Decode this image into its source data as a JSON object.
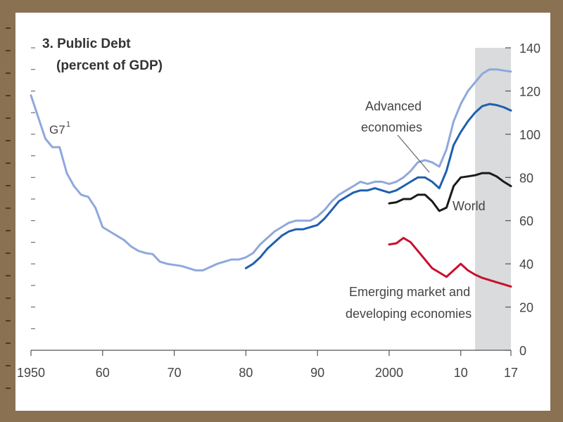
{
  "chart_data": {
    "type": "line",
    "title": "3. Public Debt",
    "subtitle": "(percent of GDP)",
    "xlabel": "",
    "ylabel": "",
    "xlim": [
      1950,
      2017
    ],
    "ylim": [
      0,
      140
    ],
    "x_tick_labels": [
      {
        "x": 1950,
        "label": "1950"
      },
      {
        "x": 1960,
        "label": "60"
      },
      {
        "x": 1970,
        "label": "70"
      },
      {
        "x": 1980,
        "label": "80"
      },
      {
        "x": 1990,
        "label": "90"
      },
      {
        "x": 2000,
        "label": "2000"
      },
      {
        "x": 2010,
        "label": "10"
      },
      {
        "x": 2017,
        "label": "17"
      }
    ],
    "y_ticks": [
      0,
      20,
      40,
      60,
      80,
      100,
      120,
      140
    ],
    "y_axis_side": "right",
    "grid": false,
    "projection_shading": {
      "from": 2012,
      "to": 2017,
      "color": "#d9dbdd"
    },
    "series": [
      {
        "name": "G7¹",
        "color": "#8fa8dc",
        "points": [
          [
            1950,
            118
          ],
          [
            1951,
            108
          ],
          [
            1952,
            98
          ],
          [
            1953,
            94
          ],
          [
            1954,
            94
          ],
          [
            1955,
            82
          ],
          [
            1956,
            76
          ],
          [
            1957,
            72
          ],
          [
            1958,
            71
          ],
          [
            1959,
            66
          ],
          [
            1960,
            57
          ],
          [
            1961,
            55
          ],
          [
            1962,
            53
          ],
          [
            1963,
            51
          ],
          [
            1964,
            48
          ],
          [
            1965,
            46
          ],
          [
            1966,
            45
          ],
          [
            1967,
            44.5
          ],
          [
            1968,
            41
          ],
          [
            1969,
            40
          ],
          [
            1970,
            39.5
          ],
          [
            1971,
            39
          ],
          [
            1972,
            38
          ],
          [
            1973,
            37
          ],
          [
            1974,
            37
          ],
          [
            1975,
            38.5
          ],
          [
            1976,
            40
          ],
          [
            1977,
            41
          ],
          [
            1978,
            42
          ],
          [
            1979,
            42
          ],
          [
            1980,
            43
          ],
          [
            1981,
            45
          ],
          [
            1982,
            49
          ],
          [
            1983,
            52
          ],
          [
            1984,
            55
          ],
          [
            1985,
            57
          ],
          [
            1986,
            59
          ],
          [
            1987,
            60
          ],
          [
            1988,
            60
          ],
          [
            1989,
            60
          ],
          [
            1990,
            62
          ],
          [
            1991,
            65
          ],
          [
            1992,
            69
          ],
          [
            1993,
            72
          ],
          [
            1994,
            74
          ],
          [
            1995,
            76
          ],
          [
            1996,
            78
          ],
          [
            1997,
            77
          ],
          [
            1998,
            78
          ],
          [
            1999,
            78
          ],
          [
            2000,
            77
          ],
          [
            2001,
            78
          ],
          [
            2002,
            80
          ],
          [
            2003,
            83
          ],
          [
            2004,
            87
          ],
          [
            2005,
            88
          ],
          [
            2006,
            87
          ],
          [
            2007,
            85
          ],
          [
            2008,
            93
          ],
          [
            2009,
            106
          ],
          [
            2010,
            114
          ],
          [
            2011,
            120
          ],
          [
            2012,
            124
          ],
          [
            2013,
            128
          ],
          [
            2014,
            130
          ],
          [
            2015,
            130
          ],
          [
            2016,
            129.5
          ],
          [
            2017,
            129
          ]
        ]
      },
      {
        "name": "Advanced economies",
        "color": "#1f5fae",
        "points": [
          [
            1980,
            38
          ],
          [
            1981,
            40
          ],
          [
            1982,
            43
          ],
          [
            1983,
            47
          ],
          [
            1984,
            50
          ],
          [
            1985,
            53
          ],
          [
            1986,
            55
          ],
          [
            1987,
            56
          ],
          [
            1988,
            56
          ],
          [
            1989,
            57
          ],
          [
            1990,
            58
          ],
          [
            1991,
            61
          ],
          [
            1992,
            65
          ],
          [
            1993,
            69
          ],
          [
            1994,
            71
          ],
          [
            1995,
            73
          ],
          [
            1996,
            74
          ],
          [
            1997,
            74
          ],
          [
            1998,
            75
          ],
          [
            1999,
            74
          ],
          [
            2000,
            73
          ],
          [
            2001,
            74
          ],
          [
            2002,
            76
          ],
          [
            2003,
            78
          ],
          [
            2004,
            80
          ],
          [
            2005,
            80
          ],
          [
            2006,
            78
          ],
          [
            2007,
            75
          ],
          [
            2008,
            83
          ],
          [
            2009,
            95
          ],
          [
            2010,
            101
          ],
          [
            2011,
            106
          ],
          [
            2012,
            110
          ],
          [
            2013,
            113
          ],
          [
            2014,
            114
          ],
          [
            2015,
            113.5
          ],
          [
            2016,
            112.5
          ],
          [
            2017,
            111
          ]
        ]
      },
      {
        "name": "World",
        "color": "#1a1a1a",
        "points": [
          [
            2000,
            68
          ],
          [
            2001,
            68.5
          ],
          [
            2002,
            70
          ],
          [
            2003,
            70
          ],
          [
            2004,
            72
          ],
          [
            2005,
            72
          ],
          [
            2006,
            69
          ],
          [
            2007,
            64.5
          ],
          [
            2008,
            66
          ],
          [
            2009,
            76
          ],
          [
            2010,
            80
          ],
          [
            2011,
            80.5
          ],
          [
            2012,
            81
          ],
          [
            2013,
            82
          ],
          [
            2014,
            82
          ],
          [
            2015,
            80.5
          ],
          [
            2016,
            78
          ],
          [
            2017,
            76
          ]
        ]
      },
      {
        "name": "Emerging market and developing economies",
        "color": "#c8102e",
        "points": [
          [
            2000,
            49
          ],
          [
            2001,
            49.5
          ],
          [
            2002,
            52
          ],
          [
            2003,
            50
          ],
          [
            2004,
            46
          ],
          [
            2005,
            42
          ],
          [
            2006,
            38
          ],
          [
            2007,
            36
          ],
          [
            2008,
            34
          ],
          [
            2009,
            37
          ],
          [
            2010,
            40
          ],
          [
            2011,
            37
          ],
          [
            2012,
            35
          ],
          [
            2013,
            33.5
          ],
          [
            2014,
            32.5
          ],
          [
            2015,
            31.5
          ],
          [
            2016,
            30.5
          ],
          [
            2017,
            29.5
          ]
        ]
      }
    ],
    "annotations": {
      "g7": "G7",
      "g7_sup": "1",
      "advanced_line1": "Advanced",
      "advanced_line2": "economies",
      "world": "World",
      "emerging_line1": "Emerging market and",
      "emerging_line2": "developing economies"
    }
  }
}
